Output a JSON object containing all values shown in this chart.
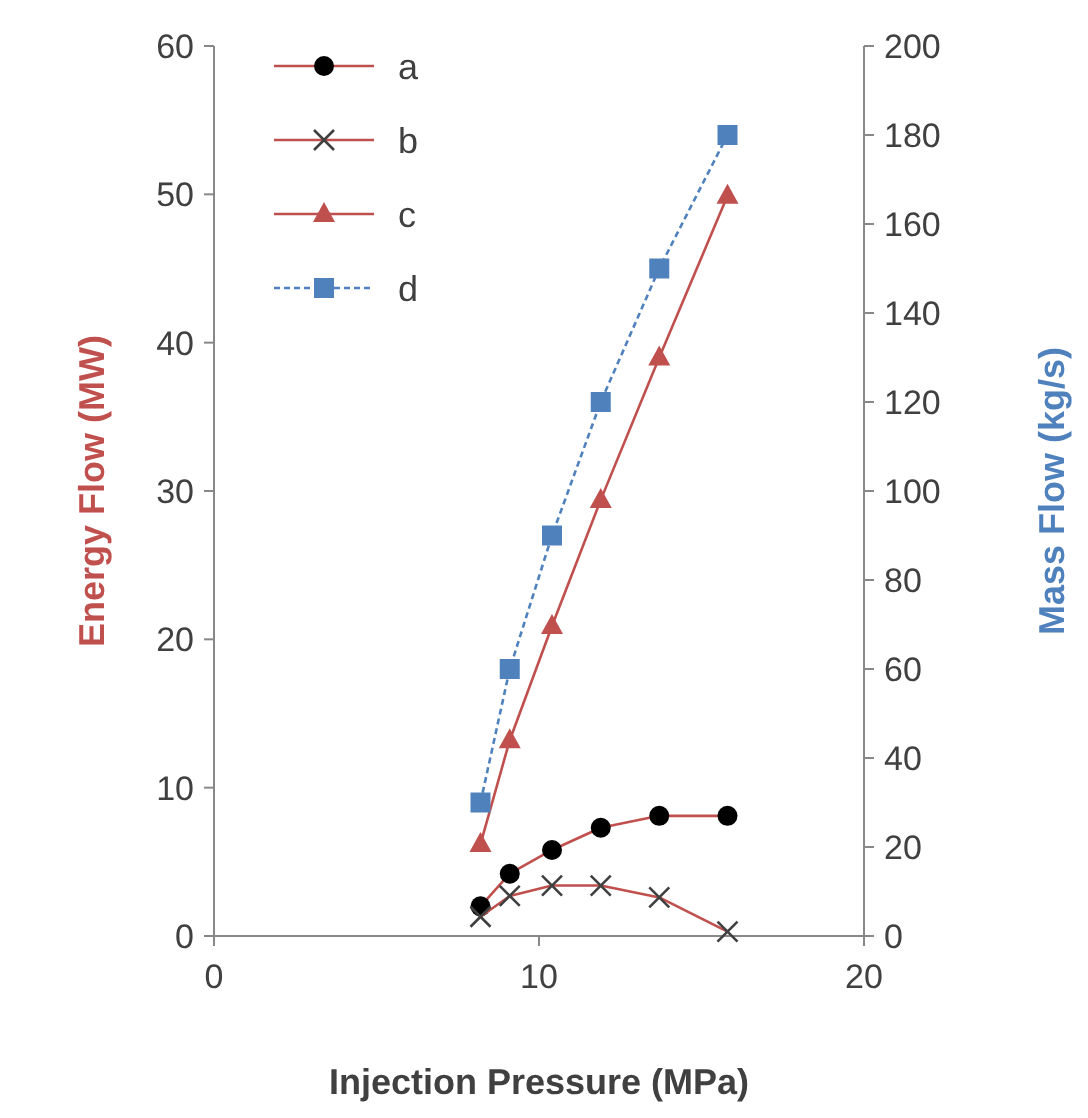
{
  "chart_data": {
    "type": "line",
    "xlabel": "Injection Pressure (MPa)",
    "ylabel": "Energy Flow (MW)",
    "y2label": "Mass Flow (kg/s)",
    "x": [
      8.2,
      9.1,
      10.4,
      11.9,
      13.7,
      15.8
    ],
    "xlim": [
      0,
      20
    ],
    "xticks": [
      0,
      10,
      20
    ],
    "ylim": [
      0,
      60
    ],
    "yticks": [
      0,
      10,
      20,
      30,
      40,
      50,
      60
    ],
    "y2lim": [
      0,
      200
    ],
    "y2ticks": [
      0,
      20,
      40,
      60,
      80,
      100,
      120,
      140,
      160,
      180,
      200
    ],
    "grid": false,
    "legend": "top left",
    "series": [
      {
        "name": "a",
        "color": "#c0504d",
        "colors": [
          "#000000",
          "#000000",
          "#000000",
          "#000000",
          "#000000",
          "#000000"
        ],
        "marker": "circle",
        "line_style": "solid",
        "values": [
          2.0,
          4.2,
          5.8,
          7.3,
          8.1,
          8.1
        ]
      },
      {
        "name": "b",
        "color": "#c0504d",
        "colors": [
          "#404040",
          "#404040",
          "#404040",
          "#404040",
          "#404040",
          "#404040"
        ],
        "marker": "cross",
        "line_style": "solid",
        "values": [
          1.3,
          2.7,
          3.4,
          3.4,
          2.6,
          0.3
        ]
      },
      {
        "name": "c",
        "color": "#c0504d",
        "marker": "triangle",
        "line_style": "solid",
        "values": [
          6.2,
          13.2,
          20.9,
          29.4,
          39.0,
          49.9
        ]
      },
      {
        "name": "d",
        "color": "#4f81bd",
        "marker": "square",
        "line_style": "dashed",
        "axis": "y2",
        "values": [
          30,
          60,
          90,
          120,
          150,
          180
        ]
      }
    ]
  }
}
